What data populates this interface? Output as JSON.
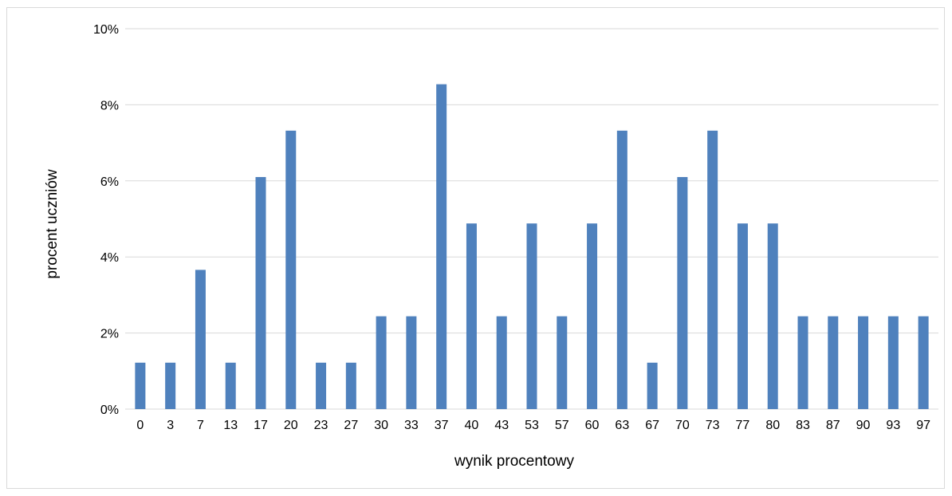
{
  "chart_data": {
    "type": "bar",
    "title": "",
    "xlabel": "wynik procentowy",
    "ylabel": "procent uczniów",
    "categories": [
      "0",
      "3",
      "7",
      "13",
      "17",
      "20",
      "23",
      "27",
      "30",
      "33",
      "37",
      "40",
      "43",
      "53",
      "57",
      "60",
      "63",
      "67",
      "70",
      "73",
      "77",
      "80",
      "83",
      "87",
      "90",
      "93",
      "97"
    ],
    "values": [
      1.22,
      1.22,
      3.66,
      1.22,
      6.1,
      7.32,
      1.22,
      1.22,
      2.44,
      2.44,
      8.54,
      4.88,
      2.44,
      4.88,
      2.44,
      4.88,
      7.32,
      1.22,
      6.1,
      7.32,
      4.88,
      4.88,
      2.44,
      2.44,
      2.44,
      2.44,
      2.44
    ],
    "ylim": [
      0,
      10
    ],
    "yticks": [
      0,
      2,
      4,
      6,
      8,
      10
    ],
    "ytick_labels": [
      "0%",
      "2%",
      "4%",
      "6%",
      "8%",
      "10%"
    ],
    "grid": true,
    "legend": "none",
    "bar_color": "#4f81bd",
    "grid_color": "#d9d9d9"
  }
}
